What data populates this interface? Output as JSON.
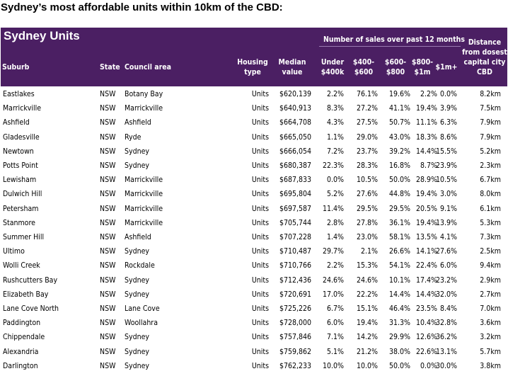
{
  "title": "Sydney’s most affordable  units within 10km of the CBD:",
  "header": {
    "table_title": "Sydney Units",
    "sales_group": "Number of sales over past 12 months",
    "suburb": "Suburb",
    "state": "State",
    "council": "Council area",
    "housing_type": [
      "Housing",
      "type"
    ],
    "median_value": [
      "Median",
      "value"
    ],
    "p1": [
      "Under",
      "$400k"
    ],
    "p2": [
      "$400-",
      "$600"
    ],
    "p3": [
      "$600-",
      "$800"
    ],
    "p4": [
      "$800-",
      "$1m"
    ],
    "p5": "$1m+",
    "distance": [
      "Distance",
      "from dosest",
      "capital city",
      "CBD"
    ]
  },
  "colors": {
    "header_bg": "#4b1f63",
    "header_text": "#ffffff"
  },
  "rows": [
    {
      "suburb": "Eastlakes",
      "state": "NSW",
      "council": "Botany Bay",
      "type": "Units",
      "median": "$620,139",
      "p1": "2.2%",
      "p2": "76.1%",
      "p3": "19.6%",
      "p4": "2.2%",
      "p5": "0.0%",
      "dist": "8.2km"
    },
    {
      "suburb": "Marrickville",
      "state": "NSW",
      "council": "Marrickville",
      "type": "Units",
      "median": "$640,913",
      "p1": "8.3%",
      "p2": "27.2%",
      "p3": "41.1%",
      "p4": "19.4%",
      "p5": "3.9%",
      "dist": "7.5km"
    },
    {
      "suburb": "Ashfield",
      "state": "NSW",
      "council": "Ashfield",
      "type": "Units",
      "median": "$664,708",
      "p1": "4.3%",
      "p2": "27.5%",
      "p3": "50.7%",
      "p4": "11.1%",
      "p5": "6.3%",
      "dist": "7.9km"
    },
    {
      "suburb": "Gladesville",
      "state": "NSW",
      "council": "Ryde",
      "type": "Units",
      "median": "$665,050",
      "p1": "1.1%",
      "p2": "29.0%",
      "p3": "43.0%",
      "p4": "18.3%",
      "p5": "8.6%",
      "dist": "7.9km"
    },
    {
      "suburb": "Newtown",
      "state": "NSW",
      "council": "Sydney",
      "type": "Units",
      "median": "$666,054",
      "p1": "7.2%",
      "p2": "23.7%",
      "p3": "39.2%",
      "p4": "14.4%",
      "p5": "15.5%",
      "dist": "5.2km"
    },
    {
      "suburb": "Potts Point",
      "state": "NSW",
      "council": "Sydney",
      "type": "Units",
      "median": "$680,387",
      "p1": "22.3%",
      "p2": "28.3%",
      "p3": "16.8%",
      "p4": "8.7%",
      "p5": "23.9%",
      "dist": "2.3km"
    },
    {
      "suburb": "Lewisham",
      "state": "NSW",
      "council": "Marrickville",
      "type": "Units",
      "median": "$687,833",
      "p1": "0.0%",
      "p2": "10.5%",
      "p3": "50.0%",
      "p4": "28.9%",
      "p5": "10.5%",
      "dist": "6.7km"
    },
    {
      "suburb": "Dulwich Hill",
      "state": "NSW",
      "council": "Marrickville",
      "type": "Units",
      "median": "$695,804",
      "p1": "5.2%",
      "p2": "27.6%",
      "p3": "44.8%",
      "p4": "19.4%",
      "p5": "3.0%",
      "dist": "8.0km"
    },
    {
      "suburb": "Petersham",
      "state": "NSW",
      "council": "Marrickville",
      "type": "Units",
      "median": "$697,587",
      "p1": "11.4%",
      "p2": "29.5%",
      "p3": "29.5%",
      "p4": "20.5%",
      "p5": "9.1%",
      "dist": "6.1km"
    },
    {
      "suburb": "Stanmore",
      "state": "NSW",
      "council": "Marrickville",
      "type": "Units",
      "median": "$705,744",
      "p1": "2.8%",
      "p2": "27.8%",
      "p3": "36.1%",
      "p4": "19.4%",
      "p5": "13.9%",
      "dist": "5.3km"
    },
    {
      "suburb": "Summer Hill",
      "state": "NSW",
      "council": "Ashfield",
      "type": "Units",
      "median": "$707,228",
      "p1": "1.4%",
      "p2": "23.0%",
      "p3": "58.1%",
      "p4": "13.5%",
      "p5": "4.1%",
      "dist": "7.3km"
    },
    {
      "suburb": "Ultimo",
      "state": "NSW",
      "council": "Sydney",
      "type": "Units",
      "median": "$710,487",
      "p1": "29.7%",
      "p2": "2.1%",
      "p3": "26.6%",
      "p4": "14.1%",
      "p5": "27.6%",
      "dist": "2.5km"
    },
    {
      "suburb": "Wolli Creek",
      "state": "NSW",
      "council": "Rockdale",
      "type": "Units",
      "median": "$710,766",
      "p1": "2.2%",
      "p2": "15.3%",
      "p3": "54.1%",
      "p4": "22.4%",
      "p5": "6.0%",
      "dist": "9.4km"
    },
    {
      "suburb": "Rushcutters Bay",
      "state": "NSW",
      "council": "Sydney",
      "type": "Units",
      "median": "$712,436",
      "p1": "24.6%",
      "p2": "24.6%",
      "p3": "10.1%",
      "p4": "17.4%",
      "p5": "23.2%",
      "dist": "2.9km"
    },
    {
      "suburb": "Elizabeth Bay",
      "state": "NSW",
      "council": "Sydney",
      "type": "Units",
      "median": "$720,691",
      "p1": "17.0%",
      "p2": "22.2%",
      "p3": "14.4%",
      "p4": "14.4%",
      "p5": "32.0%",
      "dist": "2.7km"
    },
    {
      "suburb": "Lane Cove North",
      "state": "NSW",
      "council": "Lane Cove",
      "type": "Units",
      "median": "$725,226",
      "p1": "6.7%",
      "p2": "15.1%",
      "p3": "46.4%",
      "p4": "23.5%",
      "p5": "8.4%",
      "dist": "7.0km"
    },
    {
      "suburb": "Paddington",
      "state": "NSW",
      "council": "Woollahra",
      "type": "Units",
      "median": "$728,000",
      "p1": "6.0%",
      "p2": "19.4%",
      "p3": "31.3%",
      "p4": "10.4%",
      "p5": "32.8%",
      "dist": "3.6km"
    },
    {
      "suburb": "Chippendale",
      "state": "NSW",
      "council": "Sydney",
      "type": "Units",
      "median": "$757,846",
      "p1": "7.1%",
      "p2": "14.2%",
      "p3": "29.9%",
      "p4": "12.6%",
      "p5": "36.2%",
      "dist": "3.2km"
    },
    {
      "suburb": "Alexandria",
      "state": "NSW",
      "council": "Sydney",
      "type": "Units",
      "median": "$759,862",
      "p1": "5.1%",
      "p2": "21.2%",
      "p3": "38.0%",
      "p4": "22.6%",
      "p5": "13.1%",
      "dist": "5.7km"
    },
    {
      "suburb": "Darlington",
      "state": "NSW",
      "council": "Sydney",
      "type": "Units",
      "median": "$762,233",
      "p1": "10.0%",
      "p2": "10.0%",
      "p3": "50.0%",
      "p4": "0.0%",
      "p5": "30.0%",
      "dist": "3.8km"
    }
  ]
}
